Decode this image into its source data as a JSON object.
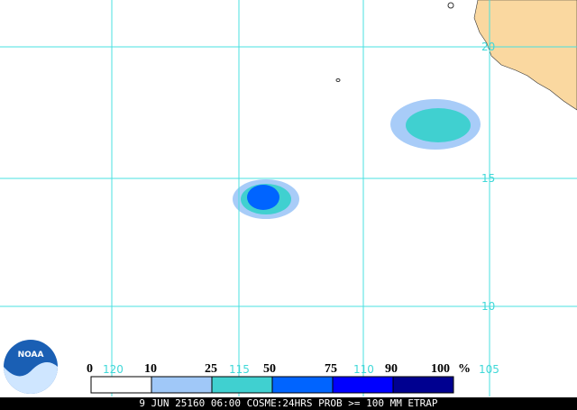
{
  "map": {
    "lat_labels": [
      "20",
      "15",
      "10"
    ],
    "lon_labels": [
      "120",
      "115",
      "110",
      "105"
    ],
    "legend": {
      "labels": [
        "0",
        "10",
        "25",
        "50",
        "75",
        "90",
        "100"
      ],
      "unit": "%"
    },
    "logo": "NOAA",
    "caption": "9 JUN 25160 06:00 COSME:24HRS PROB >= 100 MM ETRAP"
  }
}
